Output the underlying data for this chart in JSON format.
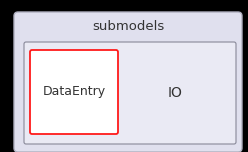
{
  "outer_box_color": "#e0e0ee",
  "outer_box_edge_color": "#b0b0c0",
  "outer_label": "submodels",
  "outer_label_fontsize": 9.5,
  "inner_box_color": "#eaeaf4",
  "inner_box_edge_color": "#888898",
  "data_entry_box_color": "#ffffff",
  "data_entry_box_edge_color": "#ff1a1a",
  "data_entry_label": "DataEntry",
  "data_entry_fontsize": 9,
  "io_label": "IO",
  "io_fontsize": 10,
  "text_color": "#333333",
  "bg_color": "#000000",
  "fig_width": 2.48,
  "fig_height": 1.52,
  "dpi": 100
}
